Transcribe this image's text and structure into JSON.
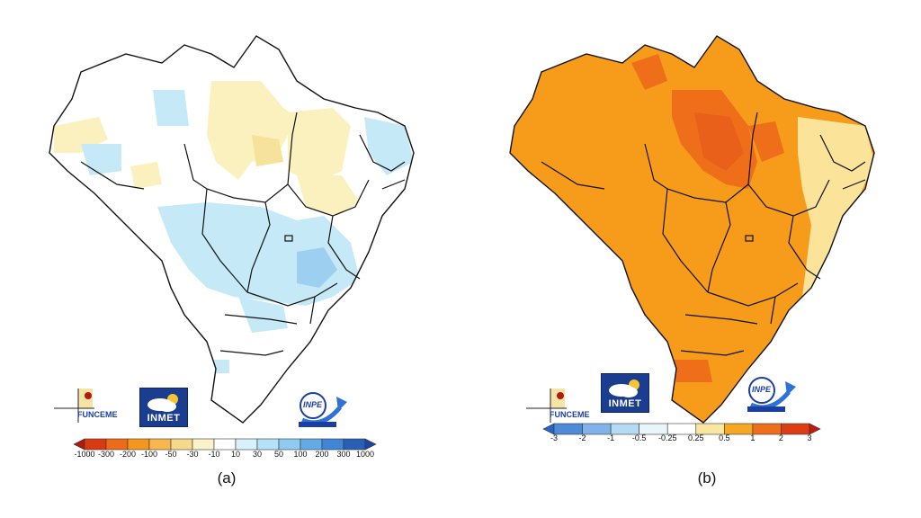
{
  "panels": [
    {
      "id": "a",
      "label": "(a)",
      "colorbar_ticks": [
        "-1000",
        "-300",
        "-200",
        "-100",
        "-50",
        "-30",
        "-10",
        "10",
        "30",
        "50",
        "100",
        "200",
        "300",
        "1000"
      ],
      "colorbar_colors": [
        "#b01a10",
        "#d93a12",
        "#ee6a16",
        "#f5961e",
        "#f7b74e",
        "#f6d98a",
        "#fbf2c8",
        "#ffffff",
        "#d8f1fb",
        "#b4e2f6",
        "#8ecbef",
        "#64aae6",
        "#3f86d6",
        "#2a5fb8",
        "#1d46a3"
      ],
      "map_fill": {
        "base": "#ffffff",
        "regions": [
          {
            "color": "#fbf1bf"
          },
          {
            "color": "#f6e29a"
          },
          {
            "color": "#c6e9f7"
          },
          {
            "color": "#9dcff0"
          }
        ]
      }
    },
    {
      "id": "b",
      "label": "(b)",
      "colorbar_ticks": [
        "-3",
        "-2",
        "-1",
        "-0.5",
        "-0.25",
        "0.25",
        "0.5",
        "1",
        "2",
        "3"
      ],
      "colorbar_colors": [
        "#2a64c4",
        "#4d8ad8",
        "#7fb3e9",
        "#b5dbf4",
        "#e8f5fb",
        "#ffffff",
        "#fbe6a0",
        "#f7a823",
        "#ee6e1a",
        "#dd3d12",
        "#c01a10"
      ],
      "map_fill": {
        "base": "#f69c1a",
        "regions": [
          {
            "color": "#f7a823"
          },
          {
            "color": "#ee6e1a"
          },
          {
            "color": "#fbe49a"
          },
          {
            "color": "#e8601a"
          }
        ]
      }
    }
  ],
  "logos": {
    "funceme": "FUNCEME",
    "inmet": "INMET",
    "inpe": "INPE"
  }
}
